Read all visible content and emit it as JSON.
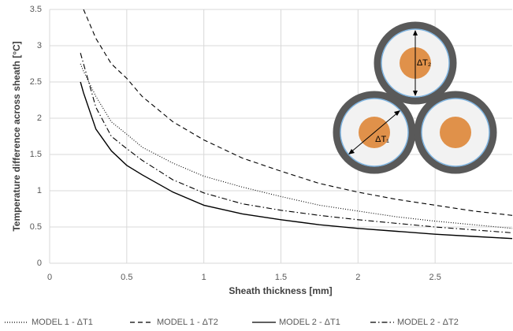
{
  "chart_data": {
    "type": "line",
    "x_label": "Sheath thickness [mm]",
    "y_label": "Temperature difference across sheath [°C]",
    "x": [
      0.2,
      0.22,
      0.3,
      0.4,
      0.5,
      0.6,
      0.8,
      1.0,
      1.25,
      1.5,
      1.75,
      2.0,
      2.25,
      2.5,
      2.75,
      3.0
    ],
    "series": [
      {
        "name": "MODEL 1 -  ΔT1",
        "color": "#000000",
        "style": "dotted",
        "values": [
          2.75,
          2.65,
          2.3,
          1.95,
          1.78,
          1.6,
          1.38,
          1.2,
          1.05,
          0.92,
          0.8,
          0.72,
          0.64,
          0.58,
          0.53,
          0.48
        ]
      },
      {
        "name": "MODEL 1 -  ΔT2",
        "color": "#000000",
        "style": "dashed",
        "values": [
          null,
          3.5,
          3.1,
          2.75,
          2.55,
          2.3,
          1.95,
          1.7,
          1.45,
          1.27,
          1.1,
          0.98,
          0.88,
          0.8,
          0.72,
          0.66
        ]
      },
      {
        "name": "MODEL 2 -  ΔT1",
        "color": "#000000",
        "style": "solid",
        "values": [
          2.5,
          2.35,
          1.85,
          1.55,
          1.35,
          1.22,
          0.98,
          0.8,
          0.68,
          0.6,
          0.53,
          0.48,
          0.44,
          0.4,
          0.37,
          0.34
        ]
      },
      {
        "name": "MODEL 2 -  ΔT2",
        "color": "#000000",
        "style": "dashdot",
        "values": [
          2.9,
          2.75,
          2.15,
          1.75,
          1.58,
          1.42,
          1.15,
          0.97,
          0.82,
          0.73,
          0.66,
          0.6,
          0.55,
          0.5,
          0.46,
          0.42
        ]
      }
    ],
    "xlim": [
      0,
      3
    ],
    "xticks": [
      0,
      0.5,
      1,
      1.5,
      2,
      2.5
    ],
    "ylim": [
      0,
      3.5
    ],
    "yticks": [
      0,
      0.5,
      1,
      1.5,
      2,
      2.5,
      3,
      3.5
    ],
    "grid": true,
    "annotations": [
      "ΔT₂",
      "ΔT₁"
    ]
  }
}
